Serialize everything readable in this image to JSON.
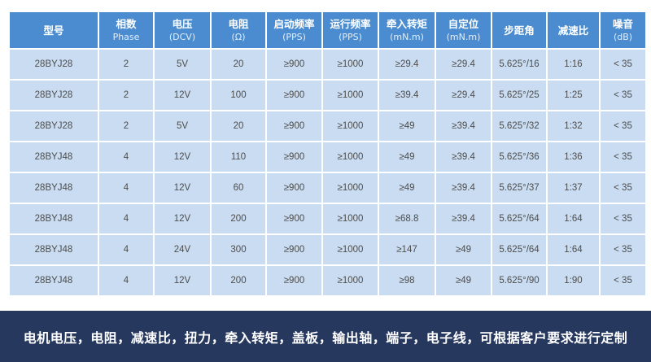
{
  "colors": {
    "header_bg": "#4a8ccf",
    "cell_bg": "#c9dcf1",
    "footer_bg": "#27385f"
  },
  "table": {
    "headers": [
      {
        "main": "型号",
        "sub": ""
      },
      {
        "main": "相数",
        "sub": "Phase"
      },
      {
        "main": "电压",
        "sub": "(DCV)"
      },
      {
        "main": "电阻",
        "sub": "(Ω)"
      },
      {
        "main": "启动频率",
        "sub": "(PPS)"
      },
      {
        "main": "运行频率",
        "sub": "(PPS)"
      },
      {
        "main": "牵入转矩",
        "sub": "(mN.m)"
      },
      {
        "main": "自定位",
        "sub": "(mN.m)"
      },
      {
        "main": "步距角",
        "sub": ""
      },
      {
        "main": "减速比",
        "sub": ""
      },
      {
        "main": "噪音",
        "sub": "(dB)"
      }
    ],
    "rows": [
      [
        "28BYJ28",
        "2",
        "5V",
        "20",
        "≥900",
        "≥1000",
        "≥29.4",
        "≥29.4",
        "5.625°/16",
        "1:16",
        "< 35"
      ],
      [
        "28BYJ28",
        "2",
        "12V",
        "100",
        "≥900",
        "≥1000",
        "≥39.4",
        "≥29.4",
        "5.625°/25",
        "1:25",
        "< 35"
      ],
      [
        "28BYJ28",
        "2",
        "5V",
        "20",
        "≥900",
        "≥1000",
        "≥49",
        "≥39.4",
        "5.625°/32",
        "1:32",
        "< 35"
      ],
      [
        "28BYJ48",
        "4",
        "12V",
        "110",
        "≥900",
        "≥1000",
        "≥49",
        "≥39.4",
        "5.625°/36",
        "1:36",
        "< 35"
      ],
      [
        "28BYJ48",
        "4",
        "12V",
        "60",
        "≥900",
        "≥1000",
        "≥49",
        "≥39.4",
        "5.625°/37",
        "1:37",
        "< 35"
      ],
      [
        "28BYJ48",
        "4",
        "12V",
        "200",
        "≥900",
        "≥1000",
        "≥68.8",
        "≥39.4",
        "5.625°/64",
        "1:64",
        "< 35"
      ],
      [
        "28BYJ48",
        "4",
        "24V",
        "300",
        "≥900",
        "≥1000",
        "≥147",
        "≥49",
        "5.625°/64",
        "1:64",
        "< 35"
      ],
      [
        "28BYJ48",
        "4",
        "12V",
        "200",
        "≥900",
        "≥1000",
        "≥98",
        "≥49",
        "5.625°/90",
        "1:90",
        "< 35"
      ]
    ]
  },
  "footer": {
    "text": "电机电压，电阻，减速比，扭力，牵入转矩，盖板，输出轴，端子，电子线，可根据客户要求进行定制"
  }
}
